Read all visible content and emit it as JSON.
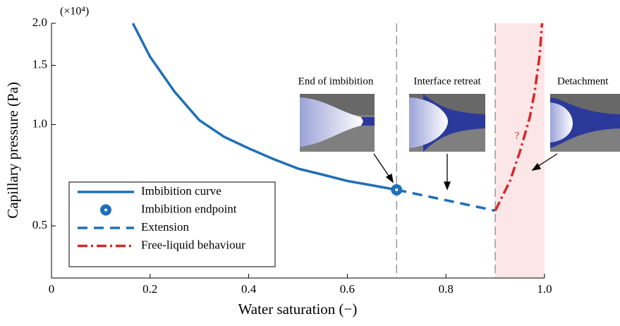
{
  "chart_data": {
    "type": "line",
    "y_multiplier": "(×10⁴)",
    "xlabel": "Water saturation (−)",
    "ylabel": "Capillary pressure (Pa)",
    "xlim": [
      0,
      1.0
    ],
    "ylim": [
      0.35,
      2.0
    ],
    "yscale": "log",
    "xticks": [
      0,
      0.2,
      0.4,
      0.6,
      0.8,
      {
        "value": 1.0,
        "label": "1.0"
      }
    ],
    "yticks": [
      {
        "value": 2,
        "label": "2.0"
      },
      1.5,
      {
        "value": 1,
        "label": "1.0"
      },
      0.5
    ],
    "vlines": [
      0.7,
      0.9
    ],
    "shaded_span": [
      0.9,
      1.0
    ],
    "shaded_color": "#fde6e8",
    "series": [
      {
        "name": "Imbibition curve",
        "color": "#1f6fb7",
        "style": "solid",
        "x": [
          0.165,
          0.2,
          0.25,
          0.3,
          0.35,
          0.4,
          0.45,
          0.5,
          0.55,
          0.6,
          0.65,
          0.7
        ],
        "values": [
          2.0,
          1.59,
          1.25,
          1.03,
          0.92,
          0.85,
          0.79,
          0.74,
          0.71,
          0.68,
          0.66,
          0.64
        ]
      },
      {
        "name": "Imbibition endpoint",
        "color": "#1f6fb7",
        "style": "marker",
        "x": [
          0.7
        ],
        "values": [
          0.64
        ]
      },
      {
        "name": "Extension",
        "color": "#1f6fb7",
        "style": "dashed",
        "x": [
          0.7,
          0.9
        ],
        "values": [
          0.64,
          0.555
        ]
      },
      {
        "name": "Free-liquid behaviour",
        "color": "#d62728",
        "style": "dashdot",
        "x": [
          0.9,
          0.93,
          0.95,
          0.97,
          0.98,
          0.99,
          0.995
        ],
        "values": [
          0.555,
          0.68,
          0.83,
          1.05,
          1.25,
          1.6,
          2.0
        ]
      }
    ],
    "annotations": [
      "End of imbibition",
      "Interface retreat",
      "Detachment",
      "?"
    ]
  }
}
